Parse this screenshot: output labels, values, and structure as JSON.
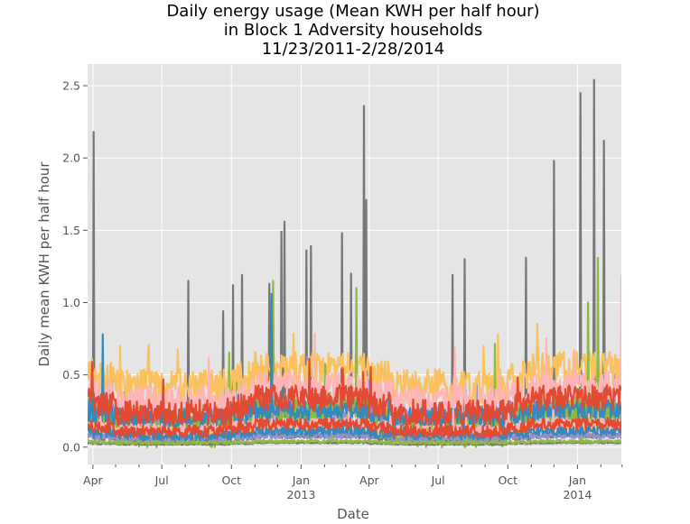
{
  "chart_data": {
    "type": "line",
    "title_lines": [
      "Daily energy usage (Mean KWH per half hour)",
      "in Block 1 Adversity households",
      "11/23/2011-2/28/2014"
    ],
    "xlabel": "Date",
    "ylabel": "Daily mean KWH per half hour",
    "ylim": [
      -0.12,
      2.65
    ],
    "xlim": [
      "2012-03-25",
      "2014-02-28"
    ],
    "y_ticks": [
      {
        "value": 0.0,
        "label": "0.0"
      },
      {
        "value": 0.5,
        "label": "0.5"
      },
      {
        "value": 1.0,
        "label": "1.0"
      },
      {
        "value": 1.5,
        "label": "1.5"
      },
      {
        "value": 2.0,
        "label": "2.0"
      },
      {
        "value": 2.5,
        "label": "2.5"
      }
    ],
    "x_major_ticks": [
      {
        "date": "2012-04-01",
        "label": "Apr",
        "sublabel": ""
      },
      {
        "date": "2012-07-01",
        "label": "Jul",
        "sublabel": ""
      },
      {
        "date": "2012-10-01",
        "label": "Oct",
        "sublabel": ""
      },
      {
        "date": "2013-01-01",
        "label": "Jan",
        "sublabel": "2013"
      },
      {
        "date": "2013-04-01",
        "label": "Apr",
        "sublabel": ""
      },
      {
        "date": "2013-07-01",
        "label": "Jul",
        "sublabel": ""
      },
      {
        "date": "2013-10-01",
        "label": "Oct",
        "sublabel": ""
      },
      {
        "date": "2014-01-01",
        "label": "Jan",
        "sublabel": "2014"
      }
    ],
    "x_minor_ticks": [
      "2012-05-01",
      "2012-06-01",
      "2012-08-01",
      "2012-09-01",
      "2012-11-01",
      "2012-12-01",
      "2013-02-01",
      "2013-03-01",
      "2013-05-01",
      "2013-06-01",
      "2013-08-01",
      "2013-09-01",
      "2013-11-01",
      "2013-12-01",
      "2014-02-01",
      "2014-03-01"
    ],
    "grid": true,
    "legend": "none",
    "series": [
      {
        "color": "#777777",
        "base": 0.05,
        "amp": 0.03,
        "noise": 0.02,
        "seed": 1,
        "spikes": [
          [
            "2012-04-02",
            2.18
          ],
          [
            "2012-08-05",
            1.15
          ],
          [
            "2012-09-20",
            0.94
          ],
          [
            "2012-10-03",
            1.12
          ],
          [
            "2012-10-15",
            1.19
          ],
          [
            "2012-11-20",
            1.13
          ],
          [
            "2012-12-10",
            1.56
          ],
          [
            "2012-12-06",
            1.49
          ],
          [
            "2013-01-08",
            1.36
          ],
          [
            "2013-01-14",
            1.39
          ],
          [
            "2013-02-24",
            1.48
          ],
          [
            "2013-03-08",
            1.2
          ],
          [
            "2013-03-25",
            2.36
          ],
          [
            "2013-03-28",
            1.71
          ],
          [
            "2013-07-20",
            1.19
          ],
          [
            "2013-08-05",
            1.3
          ],
          [
            "2013-10-25",
            1.31
          ],
          [
            "2013-12-01",
            1.98
          ],
          [
            "2014-01-05",
            2.45
          ],
          [
            "2014-01-23",
            2.54
          ],
          [
            "2014-02-05",
            2.12
          ]
        ]
      },
      {
        "color": "#988ED5",
        "base": 0.18,
        "amp": 0.08,
        "noise": 0.12,
        "seed": 2,
        "spikes": []
      },
      {
        "color": "#FBC15E",
        "base": 0.42,
        "amp": 0.12,
        "noise": 0.12,
        "seed": 3,
        "spikes": []
      },
      {
        "color": "#8EBA42",
        "base": 0.14,
        "amp": 0.12,
        "noise": 0.15,
        "seed": 4,
        "spikes": [
          [
            "2012-11-25",
            1.15
          ],
          [
            "2013-03-15",
            1.1
          ],
          [
            "2014-01-28",
            1.31
          ],
          [
            "2014-01-15",
            1.0
          ]
        ]
      },
      {
        "color": "#FFB5B8",
        "base": 0.32,
        "amp": 0.1,
        "noise": 0.1,
        "seed": 5,
        "spikes": [
          [
            "2014-02-28",
            1.19
          ]
        ]
      },
      {
        "color": "#348ABD",
        "base": 0.2,
        "amp": 0.05,
        "noise": 0.07,
        "seed": 6,
        "spikes": [
          [
            "2012-04-14",
            0.78
          ],
          [
            "2012-11-23",
            1.06
          ]
        ]
      },
      {
        "color": "#E24A33",
        "base": 0.24,
        "amp": 0.1,
        "noise": 0.09,
        "seed": 7,
        "spikes": []
      },
      {
        "color": "#777777",
        "base": 0.02,
        "amp": 0.01,
        "noise": 0.005,
        "seed": 8,
        "spikes": []
      },
      {
        "color": "#988ED5",
        "base": 0.06,
        "amp": 0.02,
        "noise": 0.02,
        "seed": 9,
        "spikes": []
      },
      {
        "color": "#FBC15E",
        "base": 0.1,
        "amp": 0.03,
        "noise": 0.03,
        "seed": 10,
        "spikes": []
      },
      {
        "color": "#8EBA42",
        "base": 0.03,
        "amp": 0.01,
        "noise": 0.01,
        "seed": 11,
        "spikes": []
      },
      {
        "color": "#FFB5B8",
        "base": 0.12,
        "amp": 0.04,
        "noise": 0.04,
        "seed": 12,
        "spikes": []
      },
      {
        "color": "#348ABD",
        "base": 0.08,
        "amp": 0.03,
        "noise": 0.03,
        "seed": 13,
        "spikes": []
      },
      {
        "color": "#E24A33",
        "base": 0.11,
        "amp": 0.05,
        "noise": 0.04,
        "seed": 14,
        "spikes": []
      }
    ]
  }
}
